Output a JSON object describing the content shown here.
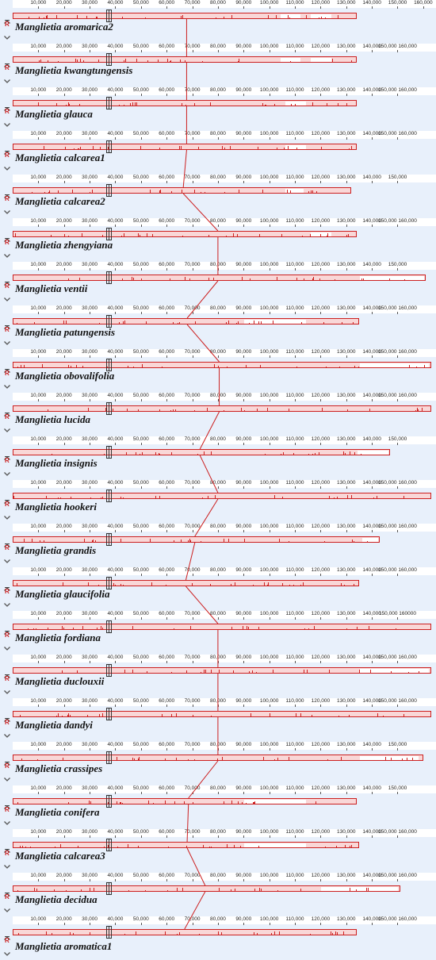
{
  "colors": {
    "track_border": "#cc1f1f",
    "track_fill": "#f9d7d7",
    "panel_bg": "#e8f0fb",
    "connector": "#cc1f1f"
  },
  "controls": {
    "up_icon": "chevron-up-icon",
    "reverse_label": "R",
    "down_icon": "chevron-down-icon"
  },
  "genomes": [
    {
      "name": "Manglietia aromarica2",
      "ticks": [
        "10,000",
        "20,000",
        "30,000",
        "40,000",
        "50,000",
        "60,000",
        "70,000",
        "80,000",
        "90,000",
        "100,000",
        "110,000",
        "120,000",
        "130,000",
        "140,000",
        "150,000",
        "160,000"
      ],
      "scale_max": 165000,
      "length": 134000,
      "gaps": [
        [
          104000,
          112000
        ],
        [
          116000,
          124000
        ]
      ],
      "link": 67800
    },
    {
      "name": "Manglietia kwangtungensis",
      "ticks": [
        "10,000",
        "20,000",
        "30,000",
        "40,000",
        "50,000",
        "60,000",
        "70,000",
        "80,000",
        "90,000",
        "100,000",
        "110,000",
        "120,000",
        "130,000",
        "140,000",
        "150,000 160,000"
      ],
      "scale_max": 165000,
      "length": 134000,
      "gaps": [
        [
          104000,
          112000
        ],
        [
          116000,
          124000
        ]
      ],
      "link": 67800
    },
    {
      "name": "Manglietia glauca",
      "ticks": [
        "10,000",
        "20,000",
        "30,000",
        "40,000",
        "50,000",
        "60,000",
        "70,000",
        "80,000",
        "90,000",
        "100,000",
        "110,000",
        "120,000",
        "130,000",
        "140,000",
        "150,000 160,000"
      ],
      "scale_max": 165000,
      "length": 134000,
      "gaps": [
        [
          106000,
          114000
        ]
      ],
      "link": 67800
    },
    {
      "name": "Manglietia calcarea1",
      "ticks": [
        "10,000",
        "20,000",
        "30,000",
        "40,000",
        "50,000",
        "60,000",
        "70,000",
        "80,000",
        "90,000",
        "100,000",
        "110,000",
        "120,000",
        "130,000",
        "140,000",
        "150,000 160,000"
      ],
      "scale_max": 165000,
      "length": 134000,
      "gaps": [
        [
          106000,
          114000
        ]
      ],
      "link": 67800
    },
    {
      "name": "Manglietia calcarea2",
      "ticks": [
        "10,000",
        "20,000",
        "30,000",
        "40,000",
        "50,000",
        "60,000",
        "70,000",
        "80,000",
        "90,000",
        "100,000",
        "110,000",
        "120,000",
        "130,000",
        "140,000",
        "150,000"
      ],
      "scale_max": 165000,
      "length": 132000,
      "gaps": [
        [
          106000,
          113000
        ]
      ],
      "link": 66500
    },
    {
      "name": "Manglietia zhengyiana",
      "ticks": [
        "10,000",
        "20,000",
        "30,000",
        "40,000",
        "50,000",
        "60,000",
        "70,000",
        "80,000",
        "90,000",
        "100,000",
        "110,000",
        "120,000",
        "130,000",
        "140,000",
        "150,000 160,000"
      ],
      "scale_max": 165000,
      "length": 134000,
      "gaps": [
        [
          116000,
          124000
        ]
      ],
      "link": 80000
    },
    {
      "name": "Manglietia ventii",
      "ticks": [
        "10,000",
        "20,000",
        "30,000",
        "40,000",
        "50,000",
        "60,000",
        "70,000",
        "80,000",
        "90,000",
        "100,000",
        "110,000",
        "120,000",
        "130,000",
        "140,000",
        "150,000"
      ],
      "scale_max": 165000,
      "length": 161000,
      "gaps": [
        [
          135000,
          160000
        ]
      ],
      "link": 80000
    },
    {
      "name": "Manglietia patungensis",
      "ticks": [
        "10,000",
        "20,000",
        "30,000",
        "40,000",
        "50,000",
        "60,000",
        "70,000",
        "80,000",
        "90,000",
        "100,000",
        "110,000",
        "120,000",
        "130,000",
        "140,000",
        "150,000 160,000"
      ],
      "scale_max": 165000,
      "length": 135000,
      "gaps": [
        [
          90000,
          114000
        ]
      ],
      "link": 68000
    },
    {
      "name": "Manglietia obovalifolia",
      "ticks": [
        "10,000",
        "20,000",
        "30,000",
        "40,000",
        "50,000",
        "60,000",
        "70,000",
        "80,000",
        "90,000",
        "100,000",
        "110,000",
        "120,000",
        "130,000",
        "140,000",
        "150,000 160,000"
      ],
      "scale_max": 165000,
      "length": 163000,
      "gaps": [
        [
          135000,
          162000
        ]
      ],
      "link": 80500
    },
    {
      "name": "Manglietia lucida",
      "ticks": [
        "10,000",
        "20,000",
        "30,000",
        "40,000",
        "50,000",
        "60,000",
        "70,000",
        "80,000",
        "90,000",
        "100,000",
        "110,000",
        "120,000",
        "130,000",
        "140,000",
        "150,000 160,000"
      ],
      "scale_max": 165000,
      "length": 163000,
      "gaps": [],
      "link": 80500
    },
    {
      "name": "Manglietia insignis",
      "ticks": [
        "10,000",
        "20,000",
        "30,000",
        "40,000",
        "50,000",
        "60,000",
        "70,000",
        "80,000",
        "90,000",
        "100,000",
        "110,000",
        "120,000",
        "130,000",
        "140,000",
        "150,000"
      ],
      "scale_max": 165000,
      "length": 147000,
      "gaps": [
        [
          134000,
          146000
        ]
      ],
      "link": 73000
    },
    {
      "name": "Manglietia hookeri",
      "ticks": [
        "10,000",
        "20,000",
        "30,000",
        "40,000",
        "50,000",
        "60,000",
        "70,000",
        "80,000",
        "90,000",
        "100,000",
        "110,000",
        "120,000",
        "130,000",
        "140,000",
        "150,000 160,000"
      ],
      "scale_max": 165000,
      "length": 163000,
      "gaps": [],
      "link": 80000
    },
    {
      "name": "Manglietia grandis",
      "ticks": [
        "10,000",
        "20,000",
        "30,000",
        "40,000",
        "50,000",
        "60,000",
        "70,000",
        "80,000",
        "90,000",
        "100,000",
        "110,000",
        "120,000",
        "130,000",
        "140,000",
        "150,000 160,000"
      ],
      "scale_max": 165000,
      "length": 143000,
      "gaps": [
        [
          136000,
          142000
        ]
      ],
      "link": 71000
    },
    {
      "name": "Manglietia glaucifolia",
      "ticks": [
        "10,000",
        "20,000",
        "30,000",
        "40,000",
        "50,000",
        "60,000",
        "70,000",
        "80,000",
        "90,000",
        "100,000",
        "110,000",
        "120,000",
        "130,000",
        "140,000",
        "150,000 160,000"
      ],
      "scale_max": 165000,
      "length": 135000,
      "gaps": [],
      "link": 67500
    },
    {
      "name": "Manglietia fordiana",
      "ticks": [
        "10,000",
        "20,000",
        "30,000",
        "40,000",
        "50,000",
        "60,000",
        "70,000",
        "80,000",
        "90,000",
        "100,000",
        "110,000",
        "120,000",
        "130,000",
        "140,000",
        "150,000 160000"
      ],
      "scale_max": 165000,
      "length": 163000,
      "gaps": [],
      "link": 80000
    },
    {
      "name": "Manglietia duclouxii",
      "ticks": [
        "10,000",
        "20,000",
        "30,000",
        "40,000",
        "50,000",
        "60,000",
        "70,000",
        "80,000",
        "90,000",
        "100,000",
        "110,000",
        "120,000",
        "130,000",
        "140,000",
        "150,000 160,000"
      ],
      "scale_max": 165000,
      "length": 163000,
      "gaps": [
        [
          135000,
          162000
        ]
      ],
      "link": 80000
    },
    {
      "name": "Manglietia dandyi",
      "ticks": [
        "10,000",
        "20,000",
        "30,000",
        "40,000",
        "50,000",
        "60,000",
        "70,000",
        "80,000",
        "90,000",
        "100,000",
        "110,000",
        "120,000",
        "130,000",
        "140,000",
        "150,000 160,000"
      ],
      "scale_max": 165000,
      "length": 163000,
      "gaps": [],
      "link": 80000
    },
    {
      "name": "Manglietia crassipes",
      "ticks": [
        "10,000",
        "20,000",
        "30,000",
        "40,000",
        "50,000",
        "60,000",
        "70,000",
        "80,000",
        "90,000",
        "100,000",
        "110,000",
        "120,000",
        "130,000",
        "140,000",
        "150,000"
      ],
      "scale_max": 165000,
      "length": 160000,
      "gaps": [
        [
          135000,
          158000
        ]
      ],
      "link": 80000
    },
    {
      "name": "Manglietia conifera",
      "ticks": [
        "10,000",
        "20,000",
        "30,000",
        "40,000",
        "50,000",
        "60,000",
        "70,000",
        "80,000",
        "90,000",
        "100,000",
        "110,000",
        "120,000",
        "130,000",
        "140,000",
        "150,000"
      ],
      "scale_max": 165000,
      "length": 134000,
      "gaps": [
        [
          90000,
          114000
        ]
      ],
      "link": 68500
    },
    {
      "name": "Manglietia calcarea3",
      "ticks": [
        "10,000",
        "20,000",
        "30,000",
        "40,000",
        "50,000",
        "60,000",
        "70,000",
        "80,000",
        "90,000",
        "100,000",
        "110,000",
        "120,000",
        "130,000",
        "140,000",
        "150,000 160,000"
      ],
      "scale_max": 165000,
      "length": 135000,
      "gaps": [
        [
          90000,
          114000
        ]
      ],
      "link": 68000
    },
    {
      "name": "Manglietia decidua",
      "ticks": [
        "10,000",
        "20,000",
        "30,000",
        "40,000",
        "50,000",
        "60,000",
        "70,000",
        "80,000",
        "90,000",
        "100,000",
        "110,000",
        "120,000",
        "130,000",
        "140,000",
        "150,000 160,000"
      ],
      "scale_max": 165000,
      "length": 151000,
      "gaps": [
        [
          120000,
          150000
        ]
      ],
      "link": 75000
    },
    {
      "name": "Manglietia aromatica1",
      "ticks": [
        "10,000",
        "20,000",
        "30,000",
        "40,000",
        "50,000",
        "60,000",
        "70,000",
        "80,000",
        "90,000",
        "100,000",
        "110,000",
        "120,000",
        "130,000",
        "140,000",
        "150,000 160,000"
      ],
      "scale_max": 165000,
      "length": 134000,
      "gaps": [],
      "link": 67000
    }
  ]
}
